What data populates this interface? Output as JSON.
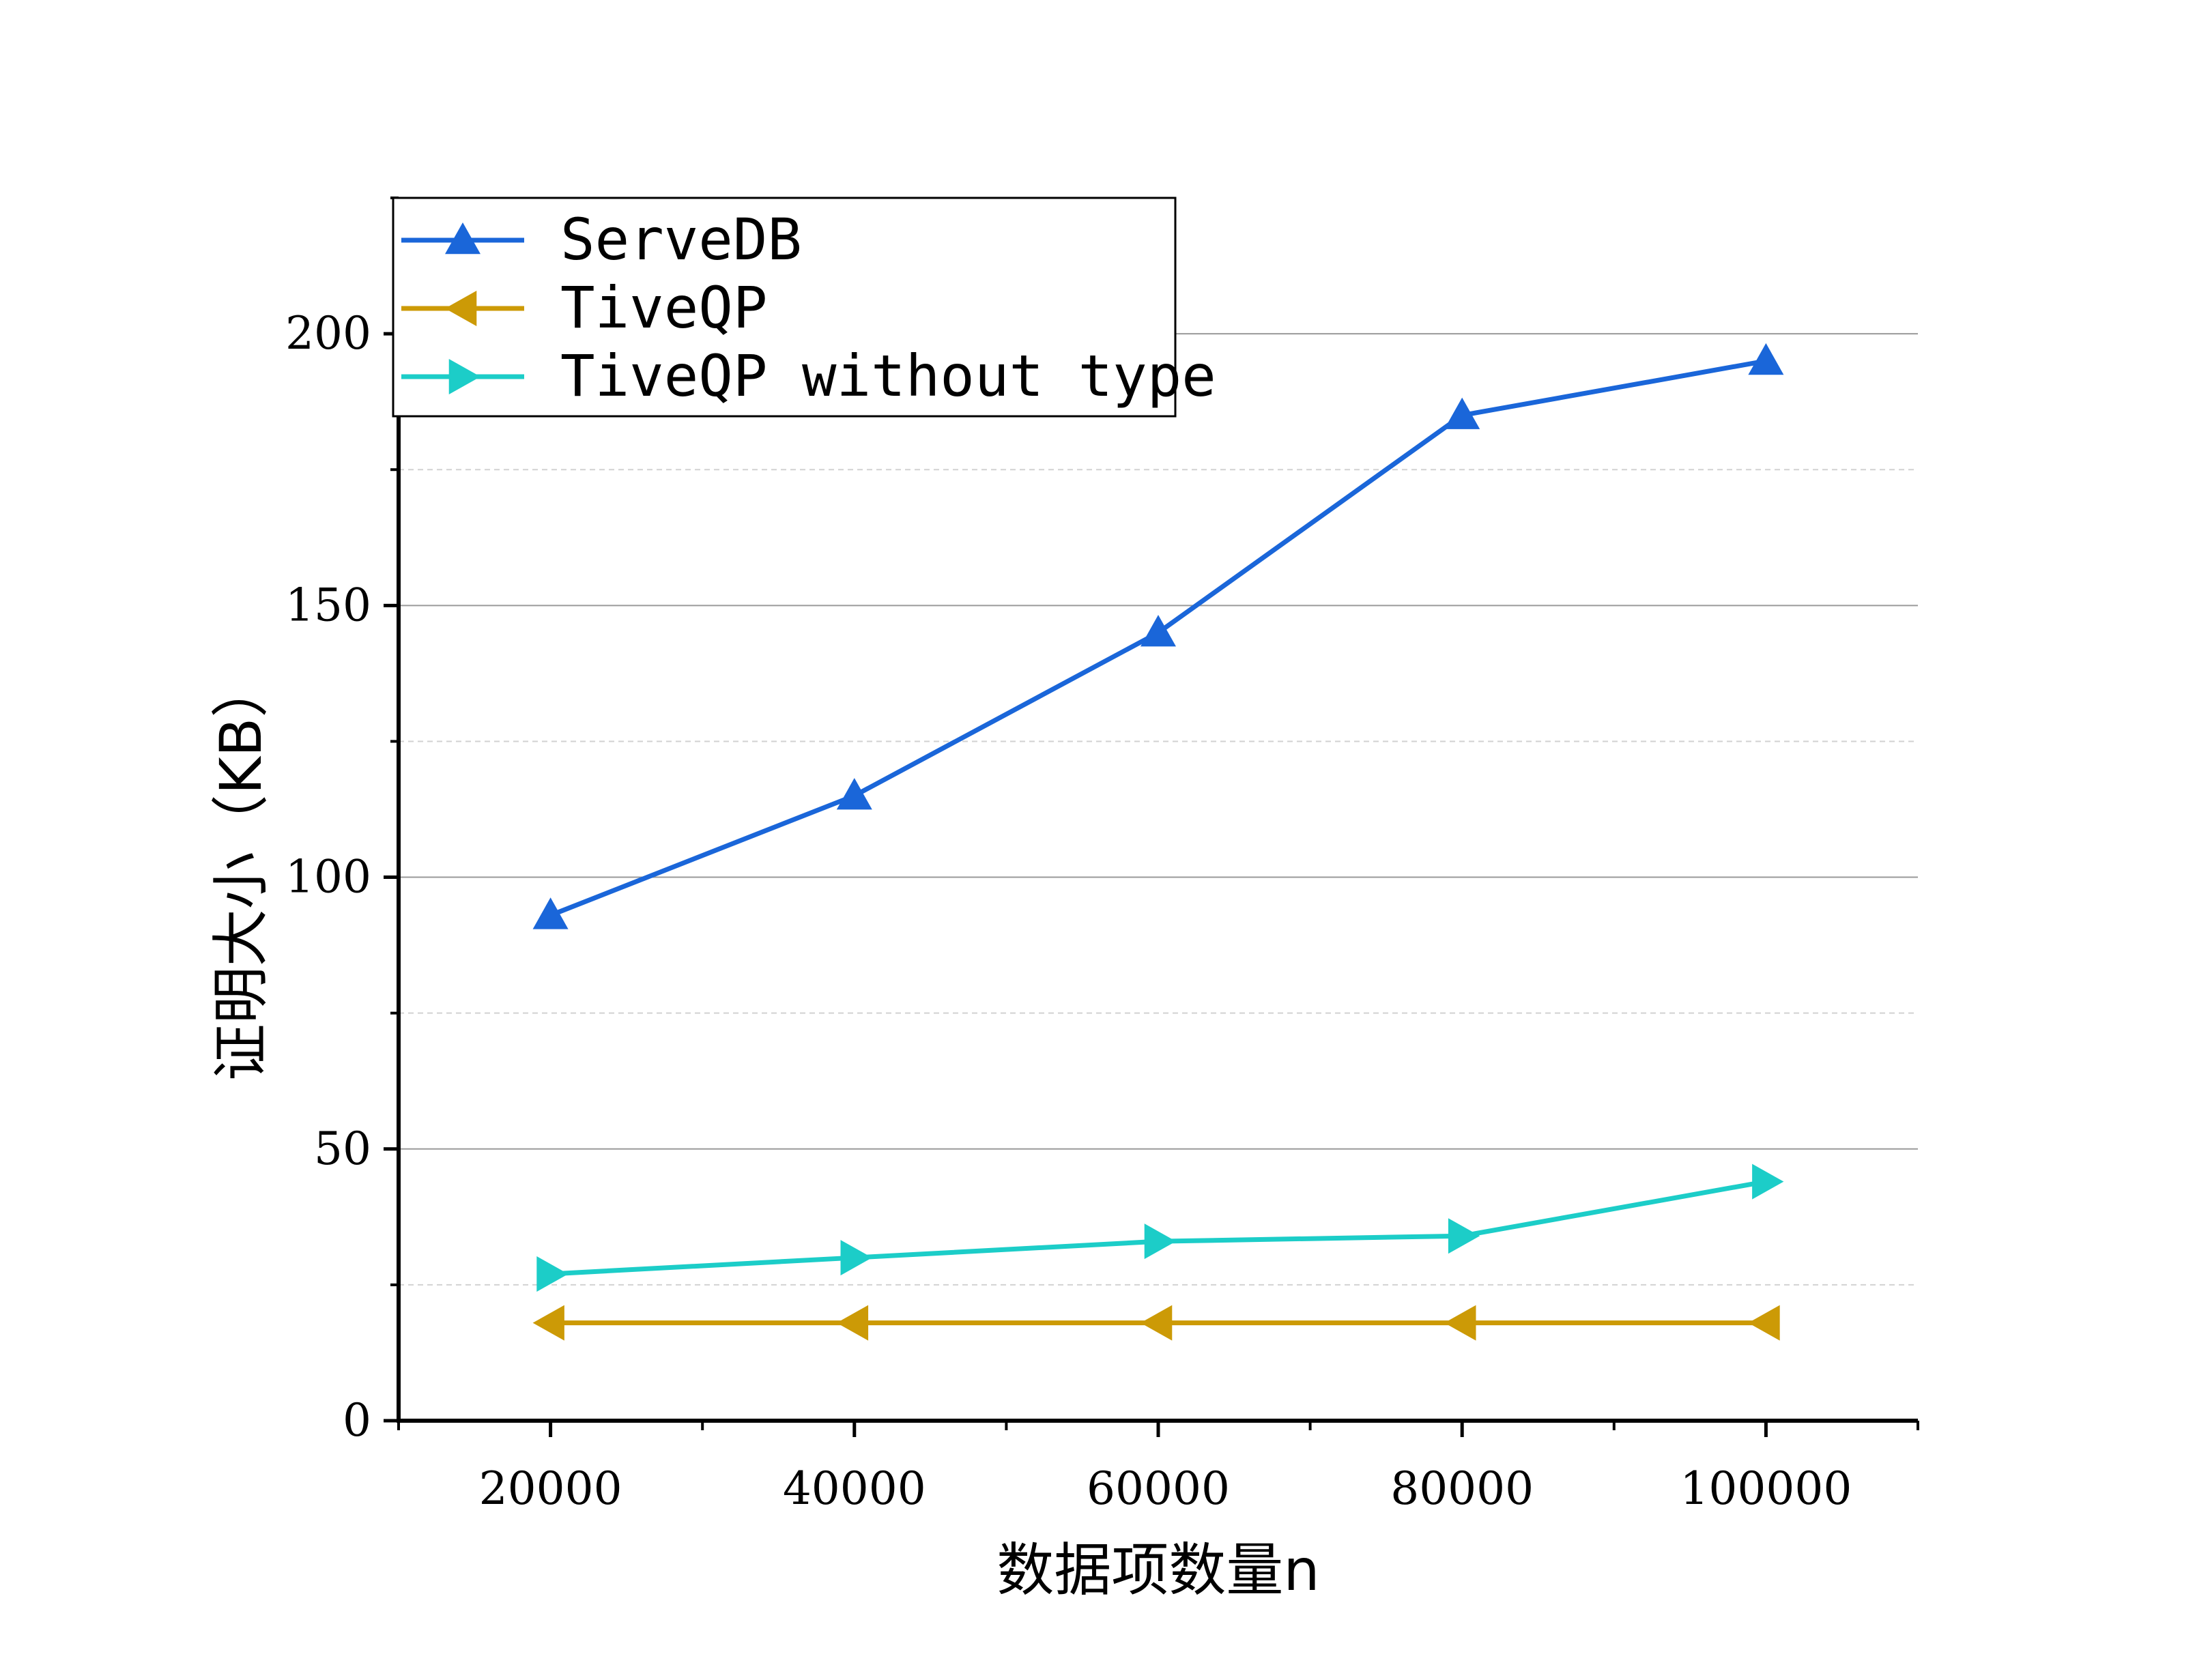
{
  "chart_data": {
    "type": "line",
    "xlabel": "数据项数量n",
    "ylabel": "证明大小（KB）",
    "x": [
      20000,
      40000,
      60000,
      80000,
      100000
    ],
    "xlim": [
      10000,
      110000
    ],
    "ylim": [
      0,
      225
    ],
    "xticks": [
      20000,
      40000,
      60000,
      80000,
      100000
    ],
    "xtick_labels": [
      "20000",
      "40000",
      "60000",
      "80000",
      "100000"
    ],
    "yticks": [
      0,
      50,
      100,
      150,
      200
    ],
    "ytick_labels": [
      "0",
      "50",
      "100",
      "150",
      "200"
    ],
    "grid": "horizontal",
    "legend_position": "top-left",
    "series": [
      {
        "name": "ServeDB",
        "values": [
          93,
          115,
          145,
          185,
          195
        ],
        "color": "#1a66d9",
        "marker": "triangle-up"
      },
      {
        "name": "TiveQP",
        "values": [
          18,
          18,
          18,
          18,
          18
        ],
        "color": "#cc9a06",
        "marker": "triangle-left"
      },
      {
        "name": "TiveQP without type",
        "values": [
          27,
          30,
          33,
          34,
          44
        ],
        "color": "#1ccdc8",
        "marker": "triangle-right"
      }
    ]
  }
}
